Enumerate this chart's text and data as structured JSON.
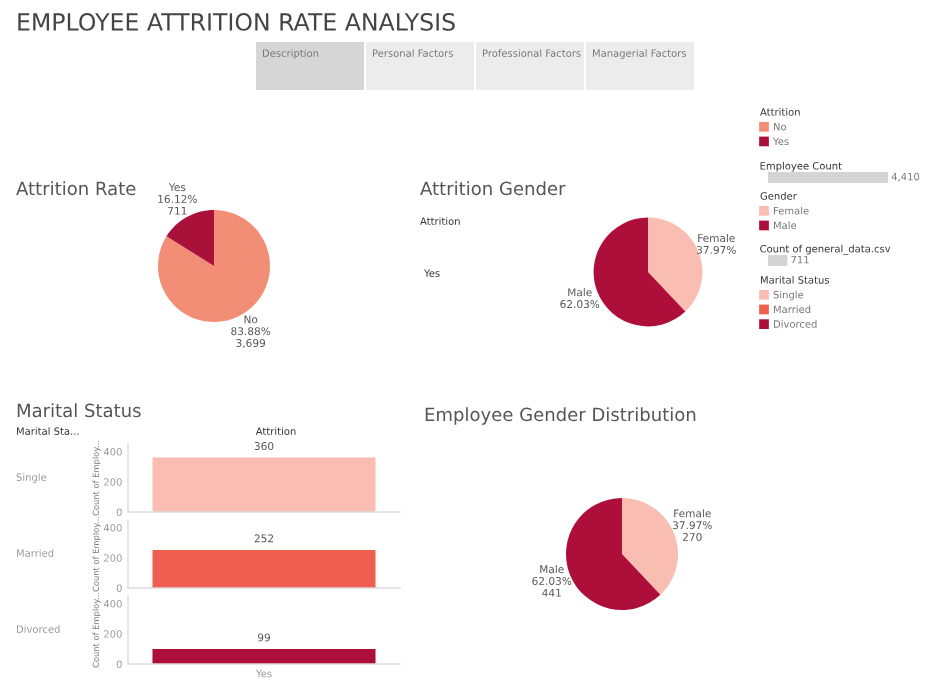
{
  "chart_data": [
    {
      "type": "other",
      "title": "EMPLOYEE ATTRITION RATE ANALYSIS",
      "annotations": [
        "Description",
        "Personal Factors",
        "Professional Factors",
        "Managerial Factors"
      ]
    },
    {
      "type": "pie",
      "title": "Attrition Rate",
      "categories": [
        "No",
        "Yes"
      ],
      "values": [
        3699,
        711
      ],
      "value_labels": [
        "83.88%\n3,699",
        "16.12%\n711"
      ],
      "colors": [
        "#f28e76",
        "#a9113a"
      ]
    },
    {
      "type": "pie",
      "title": "Attrition Gender",
      "annotations": [
        "Attrition",
        "Yes"
      ],
      "categories": [
        "Female",
        "Male"
      ],
      "values": [
        37.97,
        62.03
      ],
      "value_labels": [
        "37.97%",
        "62.03%"
      ],
      "colors": [
        "#f9bdb1",
        "#ad0f3a"
      ]
    },
    {
      "type": "other",
      "annotations": [
        "Attrition",
        "Gender",
        "Marital Status"
      ],
      "categories": [
        "No",
        "Yes",
        "Female",
        "Male",
        "Single",
        "Married",
        "Divorced"
      ],
      "colors": [
        "#f28e76",
        "#a9113a",
        "#f9bdb1",
        "#ad0f3a",
        "#f9bdb1",
        "#ef5f4f",
        "#ad0f3a"
      ]
    },
    {
      "type": "bar",
      "orientation": "horizontal",
      "categories": [
        "Employee Count",
        "Count of general_data.csv"
      ],
      "values": [
        4410,
        711
      ],
      "value_labels": [
        "4,410",
        "711"
      ],
      "color": "#d4d4d4"
    },
    {
      "type": "bar",
      "title": "Marital Status",
      "annotations": [
        "Single",
        "Marital Sta...",
        "Attrition"
      ],
      "categories": [
        null
      ],
      "values": [
        360
      ],
      "color": "#f9bdb1",
      "ylabel": "Count of Employ...",
      "ylim": [
        0,
        450
      ],
      "yticks": [
        0,
        200,
        400
      ],
      "data_labels": true,
      "tick_labels": "y"
    },
    {
      "type": "bar",
      "annotations": [
        "Married"
      ],
      "categories": [
        null
      ],
      "values": [
        252
      ],
      "color": "#ef5f4f",
      "ylabel": "Count of Employ...",
      "ylim": [
        0,
        450
      ],
      "yticks": [
        0,
        200,
        400
      ],
      "data_labels": true,
      "tick_labels": "y"
    },
    {
      "type": "bar",
      "annotations": [
        "Divorced"
      ],
      "categories": [
        "Yes"
      ],
      "values": [
        99
      ],
      "color": "#ad0f3a",
      "ylabel": "Count of Employ...",
      "ylim": [
        0,
        450
      ],
      "yticks": [
        0,
        200,
        400
      ],
      "data_labels": true
    },
    {
      "type": "pie",
      "title": "Employee Gender Distribution",
      "categories": [
        "Female",
        "Male"
      ],
      "values": [
        270,
        441
      ],
      "value_labels": [
        "37.97%\n270",
        "62.03%\n441"
      ],
      "colors": [
        "#f9bdb1",
        "#ad0f3a"
      ]
    }
  ]
}
